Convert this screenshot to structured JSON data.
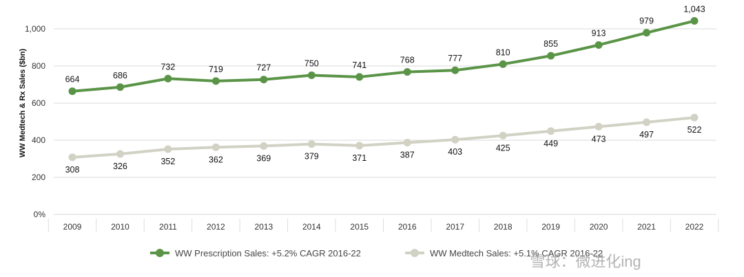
{
  "chart_data": {
    "type": "line",
    "title": "",
    "xlabel": "",
    "ylabel": "WW Medtech & Rx Sales ($bn)",
    "categories": [
      "2009",
      "2010",
      "2011",
      "2012",
      "2013",
      "2014",
      "2015",
      "2016",
      "2017",
      "2018",
      "2019",
      "2020",
      "2021",
      "2022"
    ],
    "ylim": [
      0,
      1000
    ],
    "yticks": [
      0,
      200,
      400,
      600,
      800,
      1000
    ],
    "ytick_labels": [
      "0%",
      "200",
      "400",
      "600",
      "800",
      "1,000"
    ],
    "grid": true,
    "legend_position": "bottom",
    "series": [
      {
        "name": "WW Prescription Sales: +5.2% CAGR 2016-22",
        "color": "#5a9447",
        "values": [
          664,
          686,
          732,
          719,
          727,
          750,
          741,
          768,
          777,
          810,
          855,
          913,
          979,
          1043
        ],
        "labels": [
          "664",
          "686",
          "732",
          "719",
          "727",
          "750",
          "741",
          "768",
          "777",
          "810",
          "855",
          "913",
          "979",
          "1,043"
        ]
      },
      {
        "name": "WW Medtech Sales: +5.1% CAGR 2016-22",
        "color": "#d1d1c4",
        "values": [
          308,
          326,
          352,
          362,
          369,
          379,
          371,
          387,
          403,
          425,
          449,
          473,
          497,
          522
        ],
        "labels": [
          "308",
          "326",
          "352",
          "362",
          "369",
          "379",
          "371",
          "387",
          "403",
          "425",
          "449",
          "473",
          "497",
          "522"
        ]
      }
    ]
  },
  "watermark": "雪球：微进化ing"
}
